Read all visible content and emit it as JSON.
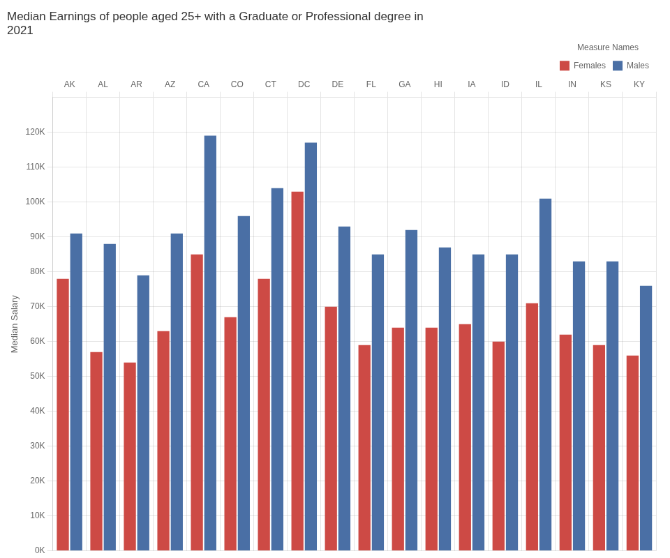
{
  "chart_data": {
    "type": "bar",
    "title": "Median Earnings of people aged 25+ with a Graduate or Professional degree in\n2021",
    "ylabel": "Median Salary",
    "categories": [
      "AK",
      "AL",
      "AR",
      "AZ",
      "CA",
      "CO",
      "CT",
      "DC",
      "DE",
      "FL",
      "GA",
      "HI",
      "IA",
      "ID",
      "IL",
      "IN",
      "KS",
      "KY"
    ],
    "series": [
      {
        "name": "Females",
        "color": "#cd4a45",
        "values": [
          78000,
          57000,
          54000,
          63000,
          85000,
          67000,
          78000,
          103000,
          70000,
          59000,
          64000,
          64000,
          65000,
          60000,
          71000,
          62000,
          59000,
          56000
        ]
      },
      {
        "name": "Males",
        "color": "#4a6fa5",
        "values": [
          91000,
          88000,
          79000,
          91000,
          119000,
          96000,
          104000,
          117000,
          93000,
          85000,
          92000,
          87000,
          85000,
          85000,
          101000,
          83000,
          83000,
          76000
        ]
      }
    ],
    "ylim": [
      0,
      130000
    ],
    "yticks": [
      {
        "value": 0,
        "label": "0K"
      },
      {
        "value": 10000,
        "label": "10K"
      },
      {
        "value": 20000,
        "label": "20K"
      },
      {
        "value": 30000,
        "label": "30K"
      },
      {
        "value": 40000,
        "label": "40K"
      },
      {
        "value": 50000,
        "label": "50K"
      },
      {
        "value": 60000,
        "label": "60K"
      },
      {
        "value": 70000,
        "label": "70K"
      },
      {
        "value": 80000,
        "label": "80K"
      },
      {
        "value": 90000,
        "label": "90K"
      },
      {
        "value": 100000,
        "label": "100K"
      },
      {
        "value": 110000,
        "label": "110K"
      },
      {
        "value": 120000,
        "label": "120K"
      }
    ],
    "grid": true,
    "legend": "upper right",
    "legend_title": "Measure Names"
  }
}
